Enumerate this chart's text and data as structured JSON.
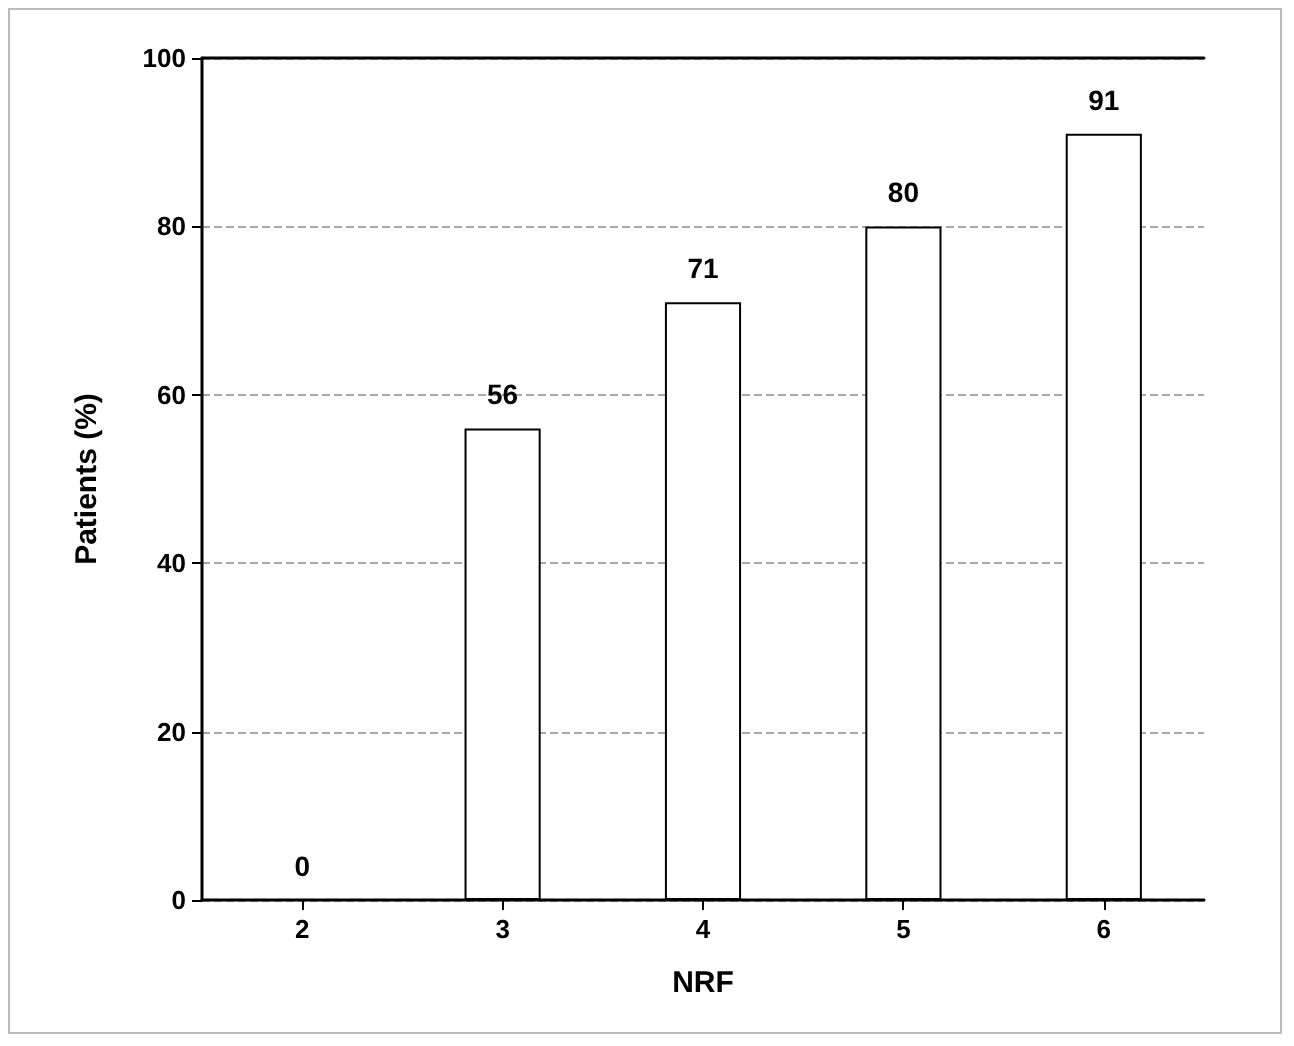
{
  "chart_data": {
    "type": "bar",
    "xlabel": "NRF",
    "ylabel": "Patients (%)",
    "categories": [
      "2",
      "3",
      "4",
      "5",
      "6"
    ],
    "values": [
      0,
      56,
      71,
      80,
      91
    ],
    "color": "#ffffff",
    "ylim": [
      0,
      100
    ],
    "yticks": [
      0,
      20,
      40,
      60,
      80,
      100
    ],
    "grid": "y",
    "data_labels": true
  }
}
